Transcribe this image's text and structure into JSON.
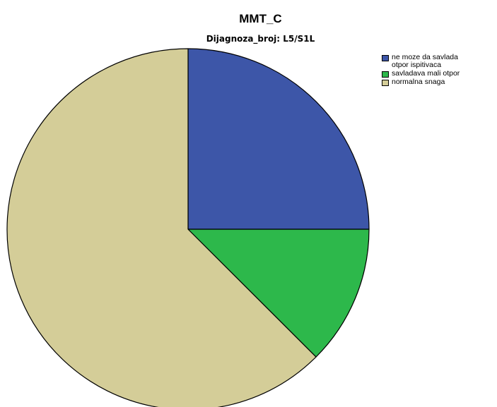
{
  "chart_data": {
    "type": "pie",
    "title": "MMT_C",
    "subtitle": "Dijagnoza_broj: L5/S1L",
    "categories": [
      "ne moze da savlada otpor ispitivaca",
      "savladava mali otpor",
      "normalna snaga"
    ],
    "values": [
      25,
      12.5,
      62.5
    ],
    "colors": [
      "#3d56a8",
      "#2db84b",
      "#d4cd98"
    ],
    "legend_position": "top-right",
    "start_angle": "12 o'clock",
    "direction": "clockwise"
  }
}
